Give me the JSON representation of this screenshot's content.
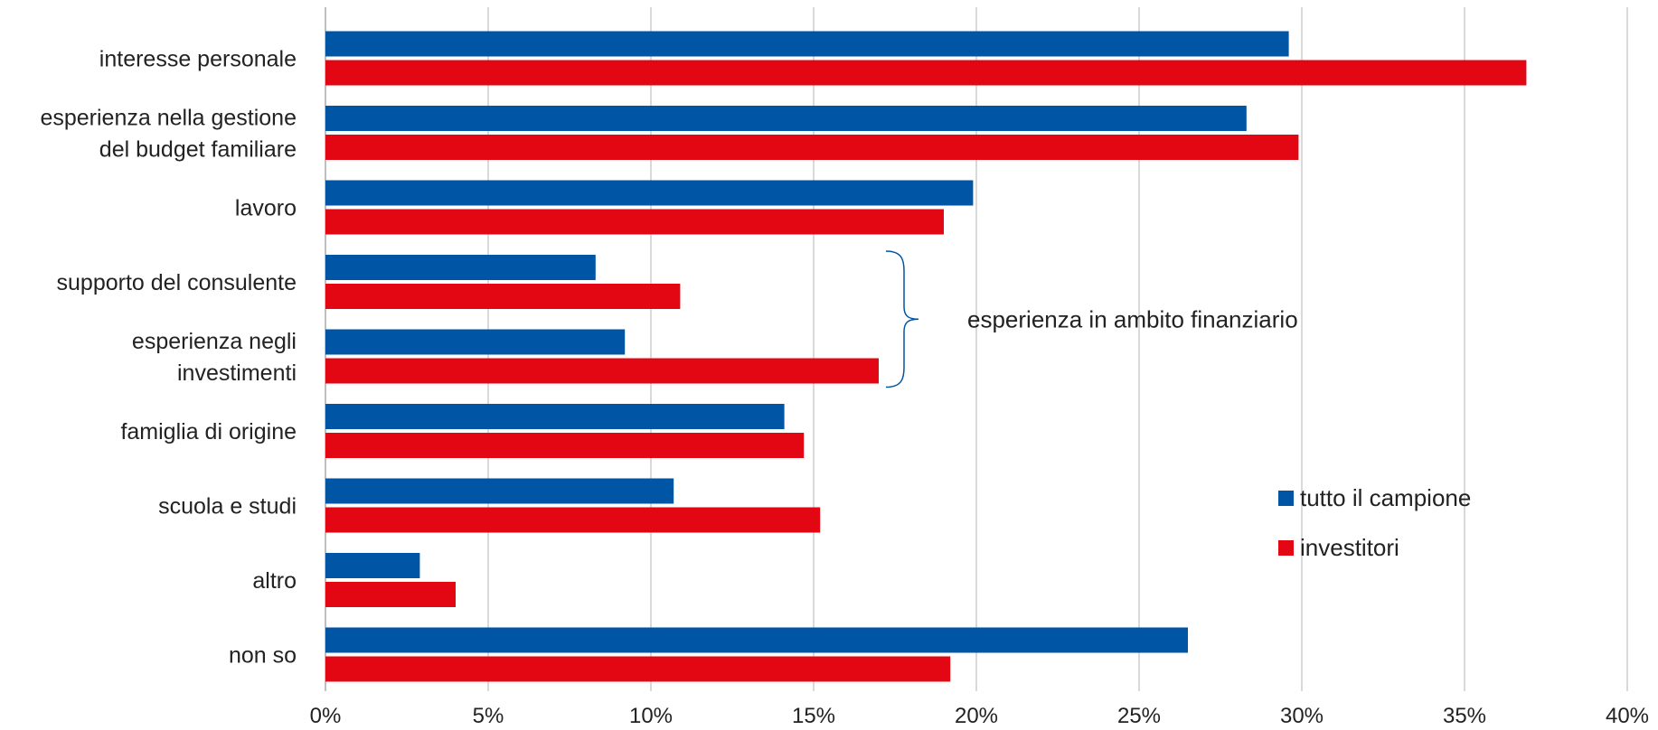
{
  "chart_data": {
    "type": "bar",
    "orientation": "horizontal",
    "title": "",
    "xlabel": "",
    "ylabel": "",
    "categories": [
      [
        "interesse personale"
      ],
      [
        "esperienza nella gestione",
        "del budget familiare"
      ],
      [
        "lavoro"
      ],
      [
        "supporto del consulente"
      ],
      [
        "esperienza negli",
        "investimenti"
      ],
      [
        "famiglia di origine"
      ],
      [
        "scuola e studi"
      ],
      [
        "altro"
      ],
      [
        "non so"
      ]
    ],
    "series": [
      {
        "name": "tutto il campione",
        "color": "#0055a4",
        "values": [
          29.6,
          28.3,
          19.9,
          8.3,
          9.2,
          14.1,
          10.7,
          2.9,
          26.5
        ]
      },
      {
        "name": "investitori",
        "color": "#e30613",
        "values": [
          36.9,
          29.9,
          19.0,
          10.9,
          17.0,
          14.7,
          15.2,
          4.0,
          19.2
        ]
      }
    ],
    "xlim": [
      0,
      40
    ],
    "xticks": [
      0,
      5,
      10,
      15,
      20,
      25,
      30,
      35,
      40
    ],
    "xtick_suffix": "%",
    "grid": true,
    "legend_position": "bottom-right",
    "annotation": {
      "text": "esperienza in ambito finanziario",
      "spans_categories": [
        3,
        4
      ]
    }
  }
}
